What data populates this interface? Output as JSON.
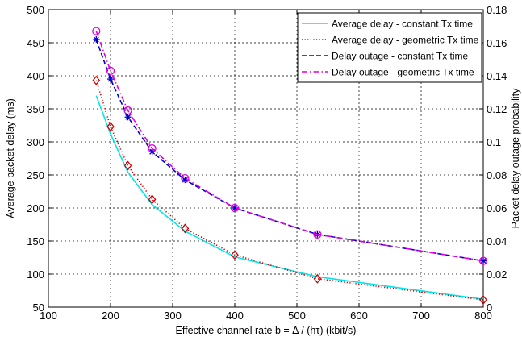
{
  "chart_data": {
    "type": "line",
    "title": "",
    "xlabel": "Effective channel rate b = Δ / (hτ) (kbit/s)",
    "ylabel_left": "Average packet delay (ms)",
    "ylabel_right": "Packet delay outage probability",
    "xlim": [
      100,
      800
    ],
    "ylim_left": [
      50,
      500
    ],
    "ylim_right": [
      0,
      0.18
    ],
    "x_ticks": [
      "100",
      "200",
      "300",
      "400",
      "500",
      "600",
      "700",
      "800"
    ],
    "y_left_ticks": [
      "50",
      "100",
      "150",
      "200",
      "250",
      "300",
      "350",
      "400",
      "450",
      "500"
    ],
    "y_right_ticks": [
      "0",
      "0.02",
      "0.04",
      "0.06",
      "0.08",
      "0.1",
      "0.12",
      "0.14",
      "0.16",
      "0.18"
    ],
    "grid": true,
    "legend_position": "top-right",
    "series": [
      {
        "name": "Average delay - constant Tx time",
        "axis": "left",
        "color": "#00E5EE",
        "dash": "solid",
        "marker": "none",
        "x": [
          177,
          200,
          228,
          267,
          320,
          400,
          533,
          800
        ],
        "y": [
          370,
          312,
          254,
          205,
          165,
          126,
          96,
          62
        ]
      },
      {
        "name": "Average delay - geometric Tx time",
        "axis": "left",
        "color": "#CC0000",
        "dash": "dotted",
        "marker": "diamond",
        "x": [
          177,
          200,
          228,
          267,
          320,
          400,
          533,
          800
        ],
        "y": [
          393,
          323,
          264,
          213,
          169,
          129,
          93,
          61
        ]
      },
      {
        "name": "Delay outage - constant Tx time",
        "axis": "right",
        "color": "#0000CC",
        "dash": "dashed",
        "marker": "star",
        "x": [
          177,
          200,
          228,
          267,
          320,
          400,
          533,
          800
        ],
        "y": [
          0.162,
          0.138,
          0.115,
          0.094,
          0.077,
          0.06,
          0.044,
          0.028
        ]
      },
      {
        "name": "Delay outage - geometric Tx time",
        "axis": "right",
        "color": "#E000E0",
        "dash": "dashdot",
        "marker": "circle",
        "x": [
          177,
          200,
          228,
          267,
          320,
          400,
          533,
          800
        ],
        "y": [
          0.167,
          0.143,
          0.119,
          0.096,
          0.078,
          0.06,
          0.044,
          0.028
        ]
      }
    ]
  }
}
